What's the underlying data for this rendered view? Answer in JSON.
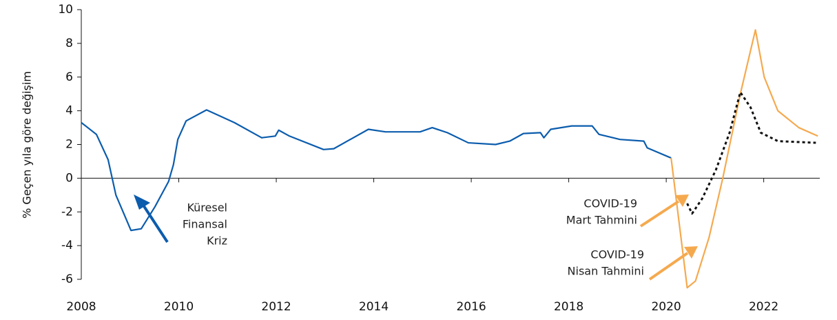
{
  "chart_data": {
    "type": "line",
    "y_label": "% Geçen yıla göre değişim",
    "xlim": [
      2008,
      2023.15
    ],
    "xticks": [
      2008,
      2010,
      2012,
      2014,
      2016,
      2018,
      2020,
      2022
    ],
    "ylim": [
      -6,
      10
    ],
    "yticks": [
      -6,
      -4,
      -2,
      0,
      2,
      4,
      6,
      8,
      10
    ],
    "series": [
      {
        "color": "#0b5cad",
        "dash": false,
        "x": [
          2008,
          2008.31,
          2008.55,
          2008.71,
          2009.02,
          2009.23,
          2009.51,
          2009.79,
          2009.89,
          2009.98,
          2010.15,
          2010.57,
          2011.14,
          2011.7,
          2011.98,
          2012.05,
          2012.27,
          2012.97,
          2013.18,
          2013.89,
          2014.24,
          2014.95,
          2015.2,
          2015.51,
          2015.94,
          2016.5,
          2016.79,
          2017.07,
          2017.42,
          2017.49,
          2017.63,
          2018.06,
          2018.48,
          2018.62,
          2019.05,
          2019.54,
          2019.61,
          2020.1
        ],
        "values": [
          3.3,
          2.6,
          1.1,
          -1.0,
          -3.1,
          -3.0,
          -1.7,
          -0.2,
          0.8,
          2.3,
          3.4,
          4.05,
          3.3,
          2.4,
          2.5,
          2.85,
          2.5,
          1.7,
          1.75,
          2.9,
          2.75,
          2.75,
          3.0,
          2.7,
          2.1,
          2.0,
          2.2,
          2.65,
          2.7,
          2.4,
          2.9,
          3.1,
          3.1,
          2.6,
          2.3,
          2.2,
          1.8,
          1.2
        ]
      },
      {
        "color": "#f5a94e",
        "dash": false,
        "x": [
          2020.1,
          2020.43,
          2020.6,
          2020.88,
          2021.16,
          2021.52,
          2021.83,
          2022.01,
          2022.29,
          2022.72,
          2023.11
        ],
        "values": [
          1.2,
          -6.5,
          -6.1,
          -3.5,
          0,
          5,
          8.8,
          6,
          4,
          3,
          2.5
        ]
      },
      {
        "color": "#111111",
        "dash": true,
        "x": [
          2020.43,
          2020.53,
          2020.74,
          2021.02,
          2021.3,
          2021.52,
          2021.73,
          2021.94,
          2022.29,
          2023.07
        ],
        "values": [
          -1.5,
          -2.1,
          -1.2,
          0.5,
          2.7,
          5.1,
          4.2,
          2.7,
          2.2,
          2.1
        ]
      }
    ],
    "annotations": [
      {
        "lines": [
          "Küresel",
          "Finansal",
          "Kriz"
        ]
      },
      {
        "lines": [
          "COVID-19",
          "Mart Tahmini"
        ]
      },
      {
        "lines": [
          "COVID-19",
          "Nisan Tahmini"
        ]
      }
    ]
  }
}
